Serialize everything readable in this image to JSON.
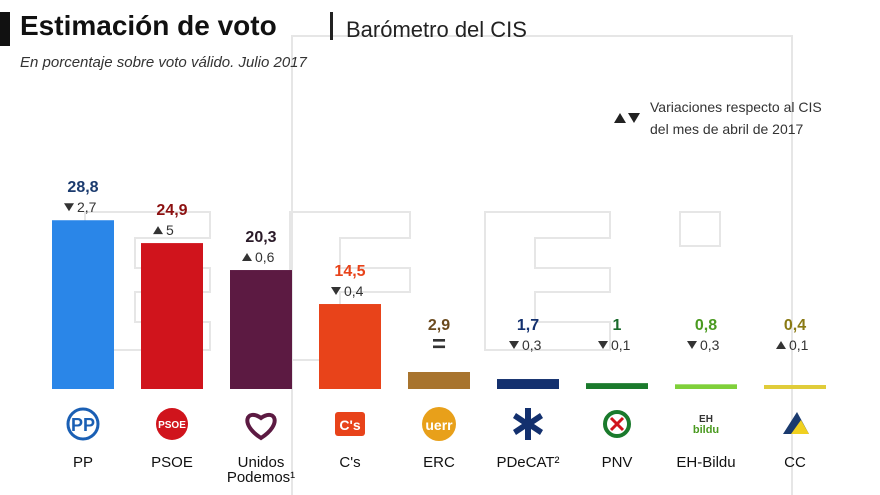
{
  "header": {
    "title": "Estimación de voto",
    "source": "Barómetro del CIS",
    "subtitle": "En porcentaje sobre voto válido. Julio 2017"
  },
  "legend": {
    "line1": "Variaciones respecto al CIS",
    "line2": "del mes de abril de 2017"
  },
  "chart_data": {
    "type": "bar",
    "title": "Estimación de voto",
    "subtitle": "En porcentaje sobre voto válido. Julio 2017",
    "xlabel": "",
    "ylabel": "",
    "ylim": [
      0,
      30
    ],
    "categories": [
      "PP",
      "PSOE",
      "Unidos Podemos¹",
      "C's",
      "ERC",
      "PDeCAT²",
      "PNV",
      "EH-Bildu",
      "CC"
    ],
    "values": [
      28.8,
      24.9,
      20.3,
      14.5,
      2.9,
      1.7,
      1,
      0.8,
      0.4
    ],
    "value_labels": [
      "28,8",
      "24,9",
      "20,3",
      "14,5",
      "2,9",
      "1,7",
      "1",
      "0,8",
      "0,4"
    ],
    "changes": [
      {
        "dir": "down",
        "label": "2,7"
      },
      {
        "dir": "up",
        "label": "5"
      },
      {
        "dir": "up",
        "label": "0,6"
      },
      {
        "dir": "down",
        "label": "0,4"
      },
      {
        "dir": "equal",
        "label": "="
      },
      {
        "dir": "down",
        "label": "0,3"
      },
      {
        "dir": "down",
        "label": "0,1"
      },
      {
        "dir": "down",
        "label": "0,3"
      },
      {
        "dir": "up",
        "label": "0,1"
      }
    ],
    "colors": [
      "#2a86e8",
      "#d0141c",
      "#5c1a42",
      "#e8431a",
      "#a8742e",
      "#13306e",
      "#1a7a2c",
      "#7fd03a",
      "#e0cc3a"
    ],
    "label_colors": [
      "#1a3a6e",
      "#8c1010",
      "#2a1a28",
      "#e8431a",
      "#6b4a1e",
      "#13306e",
      "#1a6a2c",
      "#4a9a20",
      "#8a7a14"
    ],
    "party_labels": [
      [
        "PP"
      ],
      [
        "PSOE"
      ],
      [
        "Unidos",
        "Podemos¹"
      ],
      [
        "C's"
      ],
      [
        "ERC"
      ],
      [
        "PDeCAT²"
      ],
      [
        "PNV"
      ],
      [
        "EH-Bildu"
      ],
      [
        "CC"
      ]
    ],
    "logos": [
      {
        "icon": "pp-logo-icon",
        "text": "PP",
        "color": "#1a5fb4"
      },
      {
        "icon": "psoe-logo-icon",
        "text": "PSOE",
        "color": "#d0141c"
      },
      {
        "icon": "unidos-podemos-logo-icon",
        "text": "",
        "color": "#5c1a42"
      },
      {
        "icon": "cs-logo-icon",
        "text": "C's",
        "color": "#e8431a"
      },
      {
        "icon": "erc-logo-icon",
        "text": "uerr",
        "color": "#e8a01a"
      },
      {
        "icon": "pdecat-logo-icon",
        "text": "",
        "color": "#13306e"
      },
      {
        "icon": "pnv-logo-icon",
        "text": "",
        "color": "#1a7a2c"
      },
      {
        "icon": "eh-bildu-logo-icon",
        "text": "EH bildu",
        "color": "#4a9a20"
      },
      {
        "icon": "cc-logo-icon",
        "text": "",
        "color": "#1a3a6e"
      }
    ]
  }
}
